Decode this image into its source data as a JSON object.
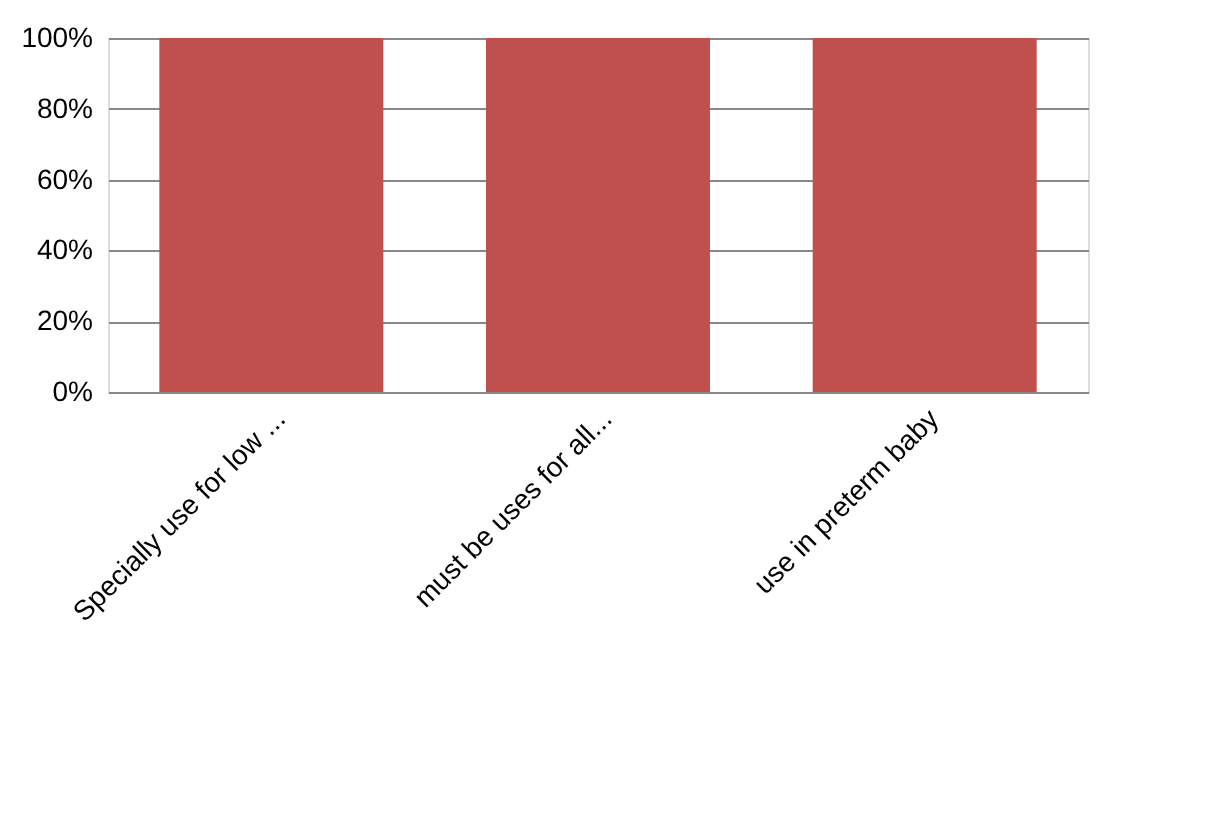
{
  "chart_data": {
    "type": "bar",
    "categories": [
      "Specially use for low ...",
      "must be uses for all...",
      "use in preterm baby"
    ],
    "values": [
      100,
      100,
      100
    ],
    "color": "#c0504d",
    "ylim": [
      0,
      100
    ],
    "yticks": [
      {
        "value": 0,
        "label": "0%"
      },
      {
        "value": 20,
        "label": "20%"
      },
      {
        "value": 40,
        "label": "40%"
      },
      {
        "value": 60,
        "label": "60%"
      },
      {
        "value": 80,
        "label": "80%"
      },
      {
        "value": 100,
        "label": "100%"
      }
    ],
    "grid": "y"
  }
}
